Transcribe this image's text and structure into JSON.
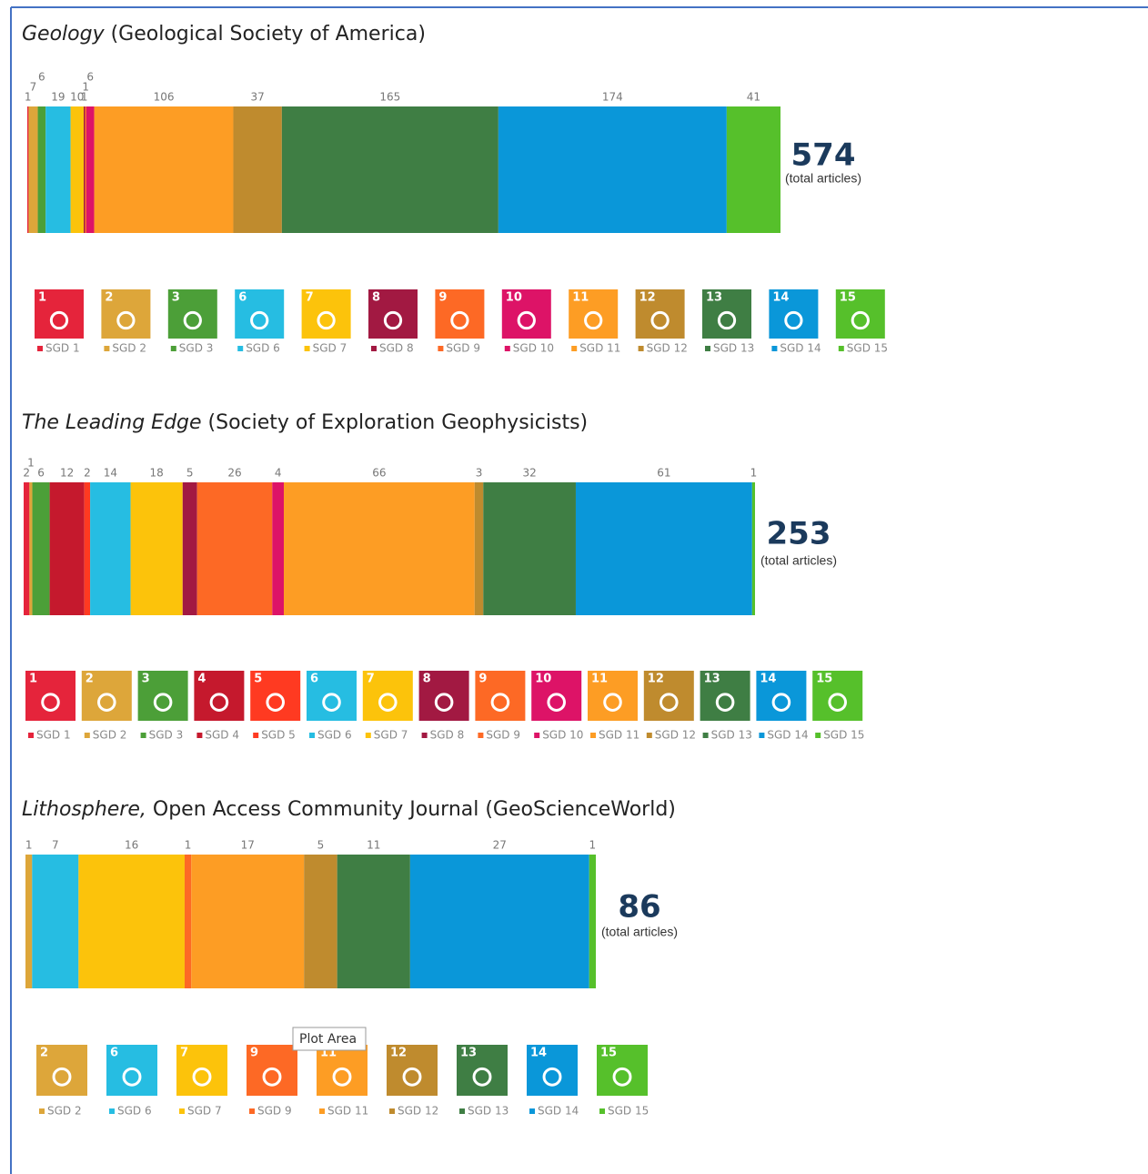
{
  "chart_data": [
    {
      "type": "bar",
      "title_italic": "Geology",
      "title_rest": " (Geological Society of America)",
      "total": 574,
      "total_label": "(total articles)",
      "series": [
        {
          "name": "SGD 1",
          "goal": 1,
          "color": "#e5243b",
          "values": [
            1
          ]
        },
        {
          "name": "SGD 2",
          "goal": 2,
          "color": "#dda63a",
          "values": [
            7
          ]
        },
        {
          "name": "SGD 3",
          "goal": 3,
          "color": "#4c9f38",
          "values": [
            6
          ]
        },
        {
          "name": "SGD 6",
          "goal": 6,
          "color": "#26bde2",
          "values": [
            19
          ]
        },
        {
          "name": "SGD 7",
          "goal": 7,
          "color": "#fcc30b",
          "values": [
            10
          ]
        },
        {
          "name": "SGD 8",
          "goal": 8,
          "color": "#a21942",
          "values": [
            1
          ]
        },
        {
          "name": "SGD 9",
          "goal": 9,
          "color": "#fd6925",
          "values": [
            1
          ]
        },
        {
          "name": "SGD 10",
          "goal": 10,
          "color": "#dd1367",
          "values": [
            6
          ]
        },
        {
          "name": "SGD 11",
          "goal": 11,
          "color": "#fd9d24",
          "values": [
            106
          ]
        },
        {
          "name": "SGD 12",
          "goal": 12,
          "color": "#bf8b2e",
          "values": [
            37
          ]
        },
        {
          "name": "SGD 13",
          "goal": 13,
          "color": "#3f7e44",
          "values": [
            165
          ]
        },
        {
          "name": "SGD 14",
          "goal": 14,
          "color": "#0a97d9",
          "values": [
            174
          ]
        },
        {
          "name": "SGD 15",
          "goal": 15,
          "color": "#56c02b",
          "values": [
            41
          ]
        }
      ]
    },
    {
      "type": "bar",
      "title_italic": "The Leading Edge",
      "title_rest": " (Society of Exploration Geophysicists)",
      "total": 253,
      "total_label": "(total articles)",
      "series": [
        {
          "name": "SGD 1",
          "goal": 1,
          "color": "#e5243b",
          "values": [
            2
          ]
        },
        {
          "name": "SGD 2",
          "goal": 2,
          "color": "#dda63a",
          "values": [
            1
          ]
        },
        {
          "name": "SGD 3",
          "goal": 3,
          "color": "#4c9f38",
          "values": [
            6
          ]
        },
        {
          "name": "SGD 4",
          "goal": 4,
          "color": "#c5192d",
          "values": [
            12
          ]
        },
        {
          "name": "SGD 5",
          "goal": 5,
          "color": "#ff3a21",
          "values": [
            2
          ]
        },
        {
          "name": "SGD 6",
          "goal": 6,
          "color": "#26bde2",
          "values": [
            14
          ]
        },
        {
          "name": "SGD 7",
          "goal": 7,
          "color": "#fcc30b",
          "values": [
            18
          ]
        },
        {
          "name": "SGD 8",
          "goal": 8,
          "color": "#a21942",
          "values": [
            5
          ]
        },
        {
          "name": "SGD 9",
          "goal": 9,
          "color": "#fd6925",
          "values": [
            26
          ]
        },
        {
          "name": "SGD 10",
          "goal": 10,
          "color": "#dd1367",
          "values": [
            4
          ]
        },
        {
          "name": "SGD 11",
          "goal": 11,
          "color": "#fd9d24",
          "values": [
            66
          ]
        },
        {
          "name": "SGD 12",
          "goal": 12,
          "color": "#bf8b2e",
          "values": [
            3
          ]
        },
        {
          "name": "SGD 13",
          "goal": 13,
          "color": "#3f7e44",
          "values": [
            32
          ]
        },
        {
          "name": "SGD 14",
          "goal": 14,
          "color": "#0a97d9",
          "values": [
            61
          ]
        },
        {
          "name": "SGD 15",
          "goal": 15,
          "color": "#56c02b",
          "values": [
            1
          ]
        }
      ]
    },
    {
      "type": "bar",
      "title_italic": "Lithosphere,",
      "title_rest": " Open Access Community Journal (GeoScienceWorld)",
      "total": 86,
      "total_label": "(total articles)",
      "series": [
        {
          "name": "SGD 2",
          "goal": 2,
          "color": "#dda63a",
          "values": [
            1
          ]
        },
        {
          "name": "SGD 6",
          "goal": 6,
          "color": "#26bde2",
          "values": [
            7
          ]
        },
        {
          "name": "SGD 7",
          "goal": 7,
          "color": "#fcc30b",
          "values": [
            16
          ]
        },
        {
          "name": "SGD 9",
          "goal": 9,
          "color": "#fd6925",
          "values": [
            1
          ]
        },
        {
          "name": "SGD 11",
          "goal": 11,
          "color": "#fd9d24",
          "values": [
            17
          ]
        },
        {
          "name": "SGD 12",
          "goal": 12,
          "color": "#bf8b2e",
          "values": [
            5
          ]
        },
        {
          "name": "SGD 13",
          "goal": 13,
          "color": "#3f7e44",
          "values": [
            11
          ]
        },
        {
          "name": "SGD 14",
          "goal": 14,
          "color": "#0a97d9",
          "values": [
            27
          ]
        },
        {
          "name": "SGD 15",
          "goal": 15,
          "color": "#56c02b",
          "values": [
            1
          ]
        }
      ]
    }
  ],
  "tooltip": "Plot Area"
}
